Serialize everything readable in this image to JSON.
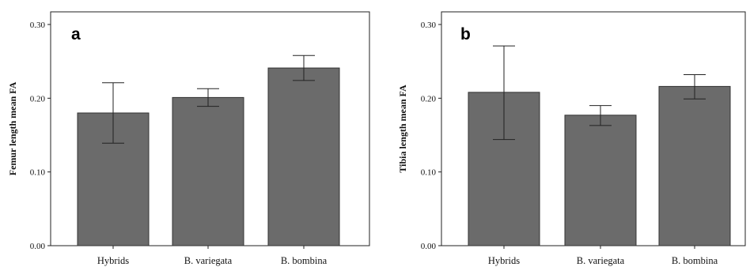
{
  "chart_data": [
    {
      "type": "bar",
      "panel_label": "a",
      "ylabel": "Femur length mean FA",
      "xlabel": "",
      "categories": [
        "Hybrids",
        "B. variegata",
        "B. bombina"
      ],
      "values": [
        0.18,
        0.201,
        0.241
      ],
      "error_low": [
        0.139,
        0.189,
        0.224
      ],
      "error_high": [
        0.221,
        0.213,
        0.258
      ],
      "ylim": [
        0,
        0.3
      ],
      "yticks": [
        0.0,
        0.1,
        0.2,
        0.3
      ],
      "ytick_labels": [
        "0.00",
        "0.10",
        "0.20",
        "0.30"
      ],
      "bar_color": "#6b6b6b",
      "grid": false
    },
    {
      "type": "bar",
      "panel_label": "b",
      "ylabel": "Tibia length mean FA",
      "xlabel": "",
      "categories": [
        "Hybrids",
        "B. variegata",
        "B. bombina"
      ],
      "values": [
        0.208,
        0.177,
        0.216
      ],
      "error_low": [
        0.144,
        0.163,
        0.199
      ],
      "error_high": [
        0.271,
        0.19,
        0.232
      ],
      "ylim": [
        0,
        0.3
      ],
      "yticks": [
        0.0,
        0.1,
        0.2,
        0.3
      ],
      "ytick_labels": [
        "0.00",
        "0.10",
        "0.20",
        "0.30"
      ],
      "bar_color": "#6b6b6b",
      "grid": false
    }
  ]
}
